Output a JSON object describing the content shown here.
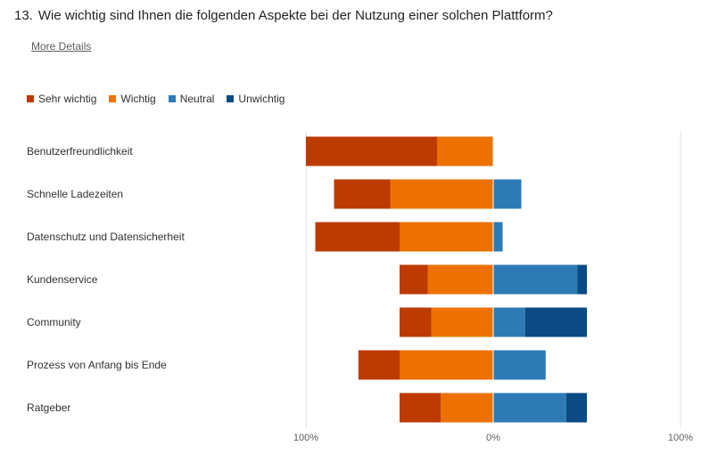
{
  "question": {
    "number": "13.",
    "text": "Wie wichtig sind Ihnen die folgenden Aspekte bei der Nutzung einer solchen Plattform?"
  },
  "more_details_label": "More Details",
  "colors": {
    "sehr_wichtig": "#bd3a00",
    "wichtig": "#ed7100",
    "neutral": "#2e7ab5",
    "unwichtig": "#0b4a82",
    "gridline": "#e1dfdd"
  },
  "chart_data": {
    "type": "bar",
    "orientation": "horizontal-diverging",
    "categories": [
      "Benutzerfreundlichkeit",
      "Schnelle Ladezeiten",
      "Datenschutz und Datensicherheit",
      "Kundenservice",
      "Community",
      "Prozess von Anfang bis Ende",
      "Ratgeber"
    ],
    "series": [
      {
        "name": "Sehr wichtig",
        "side": "left",
        "color": "#bd3a00",
        "values": [
          70,
          30,
          45,
          15,
          17,
          22,
          22
        ]
      },
      {
        "name": "Wichtig",
        "side": "left",
        "color": "#ed7100",
        "values": [
          30,
          55,
          50,
          35,
          33,
          50,
          28
        ]
      },
      {
        "name": "Neutral",
        "side": "right",
        "color": "#2e7ab5",
        "values": [
          0,
          15,
          5,
          45,
          17,
          28,
          39
        ]
      },
      {
        "name": "Unwichtig",
        "side": "right",
        "color": "#0b4a82",
        "values": [
          0,
          0,
          0,
          5,
          33,
          0,
          11
        ]
      }
    ],
    "x_ticks": [
      "100%",
      "0%",
      "100%"
    ],
    "xlim": [
      -100,
      100
    ],
    "legend_position": "top-left",
    "grid": true
  }
}
